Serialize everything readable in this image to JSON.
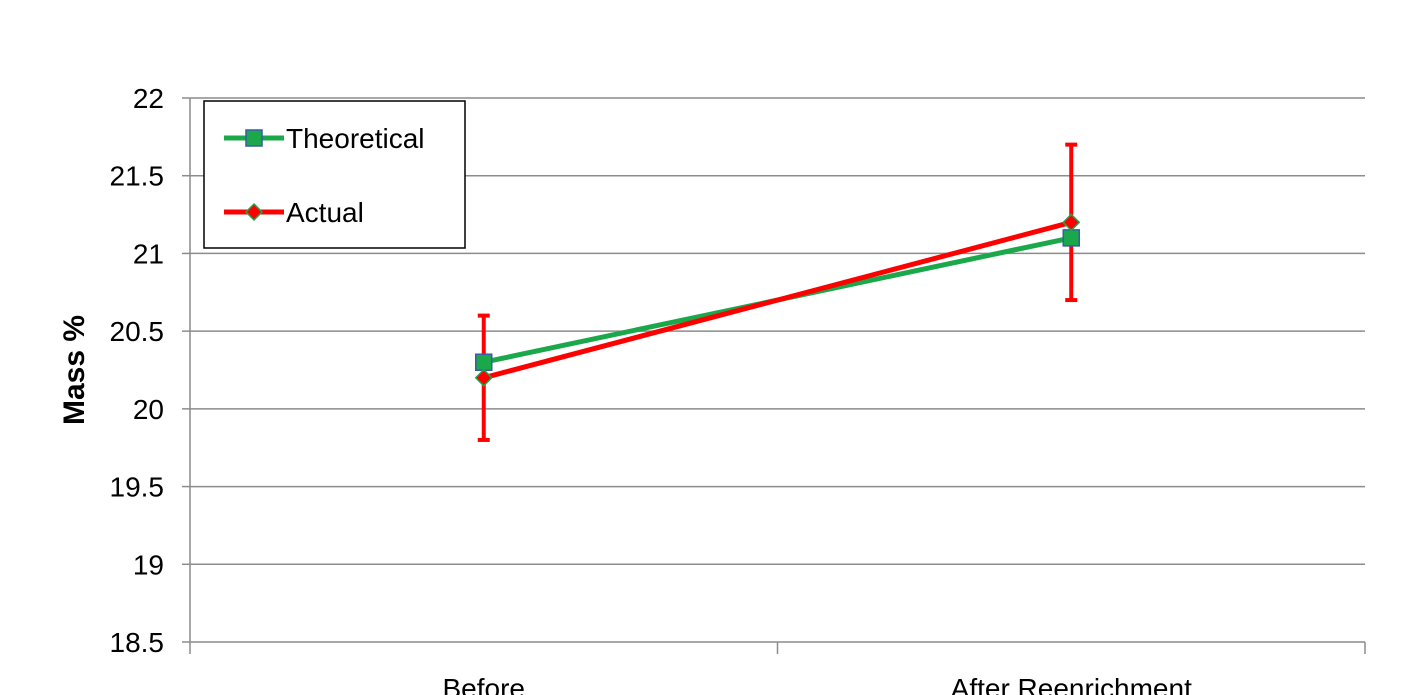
{
  "chart_data": {
    "type": "line",
    "categories": [
      "Before",
      "After Reenrichment"
    ],
    "ylabel": "Mass %",
    "xlabel": "",
    "ylim": [
      18.5,
      22
    ],
    "yticks": [
      "18.5",
      "19",
      "19.5",
      "20",
      "20.5",
      "21",
      "21.5",
      "22"
    ],
    "grid": true,
    "legend_position": "top-left",
    "series": [
      {
        "name": "Theoretical",
        "values": [
          20.3,
          21.1
        ],
        "color": "#1BA84B",
        "marker": "square",
        "marker_fill": "#1BA84B",
        "marker_edge": "#3B5BA9"
      },
      {
        "name": "Actual",
        "values": [
          20.2,
          21.2
        ],
        "color": "#FF0000",
        "marker": "diamond",
        "marker_fill": "#FF0000",
        "marker_edge": "#1BA84B",
        "error_bars": [
          [
            19.8,
            20.6
          ],
          [
            20.7,
            21.7
          ]
        ]
      }
    ]
  }
}
